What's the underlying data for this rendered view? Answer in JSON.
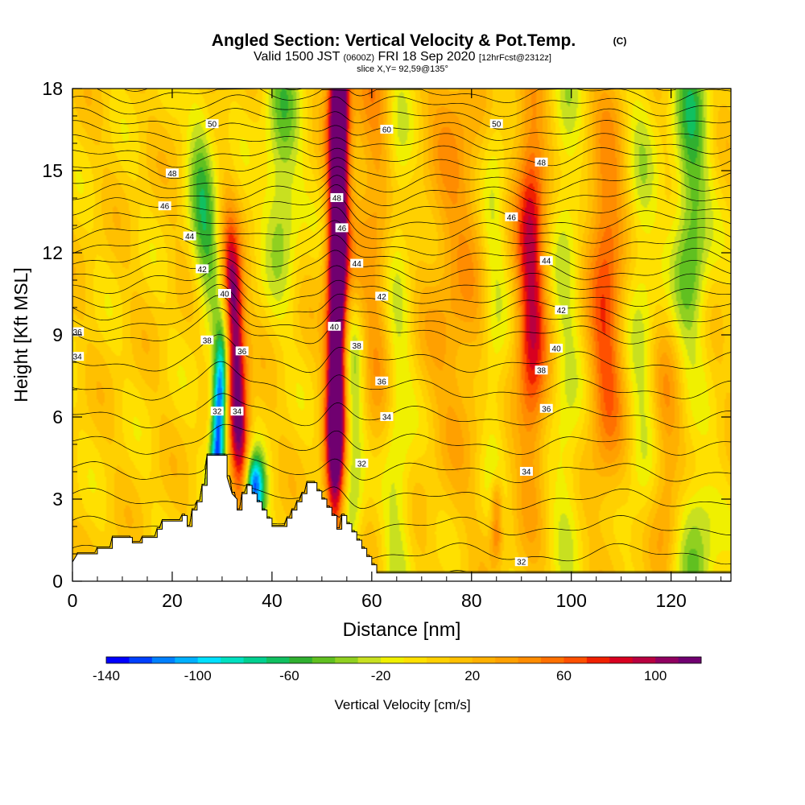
{
  "title": {
    "main": "Angled Section: Vertical Velocity & Pot.Temp.",
    "main_suffix": "(C)",
    "valid_prefix": "Valid 1500 JST",
    "valid_utc": "(0600Z)",
    "valid_date": "FRI 18 Sep 2020",
    "valid_fcst": "[12hrFcst@2312z]",
    "slice": "slice X,Y= 92,59@135°"
  },
  "chart_data": {
    "type": "heatmap",
    "xlabel": "Distance [nm]",
    "ylabel": "Height [Kft MSL]",
    "xlim": [
      0,
      132
    ],
    "ylim": [
      0,
      18
    ],
    "x_ticks": [
      0,
      20,
      40,
      60,
      80,
      100,
      120
    ],
    "y_ticks": [
      0,
      3,
      6,
      9,
      12,
      15,
      18
    ],
    "colorbar": {
      "label": "Vertical Velocity [cm/s]",
      "range": [
        -140,
        120
      ],
      "tick_values": [
        -140,
        -100,
        -60,
        -20,
        20,
        60,
        100
      ],
      "tick_labels": [
        "-140",
        "-100",
        "-60",
        "-20",
        "20",
        "60",
        "100"
      ],
      "colors": [
        "#0000ff",
        "#0040ff",
        "#0080ff",
        "#00b0ff",
        "#00e0ff",
        "#00e0c0",
        "#00d090",
        "#10c060",
        "#30b030",
        "#60c020",
        "#90d020",
        "#c8e020",
        "#f0f000",
        "#ffe000",
        "#ffd000",
        "#ffc000",
        "#ffb000",
        "#ffa000",
        "#ff8c00",
        "#ff7000",
        "#ff5000",
        "#f02000",
        "#d80020",
        "#b80040",
        "#900060",
        "#700070"
      ]
    },
    "contour_field": "Potential temperature (C)",
    "contour_labels": [
      {
        "x": 1,
        "y": 9.1,
        "text": "36"
      },
      {
        "x": 1,
        "y": 8.2,
        "text": "34"
      },
      {
        "x": 28,
        "y": 16.7,
        "text": "50"
      },
      {
        "x": 20,
        "y": 14.9,
        "text": "48"
      },
      {
        "x": 18.5,
        "y": 13.7,
        "text": "46"
      },
      {
        "x": 23.5,
        "y": 12.6,
        "text": "44"
      },
      {
        "x": 26,
        "y": 11.4,
        "text": "42"
      },
      {
        "x": 30.5,
        "y": 10.5,
        "text": "40"
      },
      {
        "x": 27,
        "y": 8.8,
        "text": "38"
      },
      {
        "x": 34,
        "y": 8.4,
        "text": "36"
      },
      {
        "x": 29,
        "y": 6.2,
        "text": "32"
      },
      {
        "x": 33,
        "y": 6.2,
        "text": "34"
      },
      {
        "x": 63,
        "y": 16.5,
        "text": "60"
      },
      {
        "x": 85,
        "y": 16.7,
        "text": "50"
      },
      {
        "x": 53,
        "y": 14,
        "text": "48"
      },
      {
        "x": 54,
        "y": 12.9,
        "text": "46"
      },
      {
        "x": 57,
        "y": 11.6,
        "text": "44"
      },
      {
        "x": 62,
        "y": 10.4,
        "text": "42"
      },
      {
        "x": 52.5,
        "y": 9.3,
        "text": "40"
      },
      {
        "x": 57,
        "y": 8.6,
        "text": "38"
      },
      {
        "x": 62,
        "y": 7.3,
        "text": "36"
      },
      {
        "x": 63,
        "y": 6,
        "text": "34"
      },
      {
        "x": 58,
        "y": 4.3,
        "text": "32"
      },
      {
        "x": 94,
        "y": 15.3,
        "text": "48"
      },
      {
        "x": 88,
        "y": 13.3,
        "text": "46"
      },
      {
        "x": 95,
        "y": 11.7,
        "text": "44"
      },
      {
        "x": 98,
        "y": 9.9,
        "text": "42"
      },
      {
        "x": 97,
        "y": 8.5,
        "text": "40"
      },
      {
        "x": 94,
        "y": 7.7,
        "text": "38"
      },
      {
        "x": 95,
        "y": 6.3,
        "text": "36"
      },
      {
        "x": 91,
        "y": 4,
        "text": "34"
      },
      {
        "x": 90,
        "y": 0.7,
        "text": "32"
      }
    ],
    "terrain_profile": [
      [
        0,
        0.7
      ],
      [
        1,
        1
      ],
      [
        5,
        1
      ],
      [
        5,
        1.2
      ],
      [
        8,
        1.2
      ],
      [
        8,
        1.6
      ],
      [
        12,
        1.6
      ],
      [
        12,
        1.4
      ],
      [
        14,
        1.4
      ],
      [
        14,
        1.6
      ],
      [
        17,
        1.6
      ],
      [
        17,
        1.9
      ],
      [
        18,
        1.9
      ],
      [
        18,
        2.2
      ],
      [
        19,
        2.2
      ],
      [
        19,
        2.2
      ],
      [
        22,
        2.2
      ],
      [
        22,
        2.4
      ],
      [
        23,
        2.4
      ],
      [
        23,
        2.0
      ],
      [
        24,
        2.0
      ],
      [
        24,
        2.6
      ],
      [
        25,
        2.6
      ],
      [
        25,
        2.9
      ],
      [
        26,
        2.9
      ],
      [
        26,
        3.5
      ],
      [
        27,
        3.5
      ],
      [
        27,
        4.6
      ],
      [
        29,
        4.6
      ],
      [
        31,
        4.6
      ],
      [
        31,
        3.8
      ],
      [
        32,
        3.2
      ],
      [
        33,
        3.0
      ],
      [
        33,
        2.6
      ],
      [
        34,
        2.6
      ],
      [
        34,
        3.2
      ],
      [
        35,
        3.2
      ],
      [
        35,
        3.5
      ],
      [
        36,
        3.5
      ],
      [
        36,
        3.2
      ],
      [
        37,
        3.2
      ],
      [
        37,
        2.9
      ],
      [
        38,
        2.9
      ],
      [
        38,
        2.6
      ],
      [
        39,
        2.6
      ],
      [
        39,
        2.3
      ],
      [
        40,
        2.3
      ],
      [
        40,
        2.0
      ],
      [
        43,
        2.0
      ],
      [
        43,
        2.3
      ],
      [
        44,
        2.3
      ],
      [
        44,
        2.6
      ],
      [
        45,
        2.6
      ],
      [
        45,
        2.9
      ],
      [
        46,
        2.9
      ],
      [
        46,
        3.2
      ],
      [
        47,
        3.2
      ],
      [
        47,
        3.6
      ],
      [
        49,
        3.6
      ],
      [
        49,
        3.3
      ],
      [
        50,
        3.3
      ],
      [
        50,
        3.0
      ],
      [
        51,
        3.0
      ],
      [
        51,
        2.7
      ],
      [
        52,
        2.7
      ],
      [
        52,
        2.4
      ],
      [
        53,
        2.4
      ],
      [
        53,
        1.9
      ],
      [
        54,
        1.9
      ],
      [
        54,
        2.4
      ],
      [
        55,
        2.4
      ],
      [
        55,
        2.1
      ],
      [
        56,
        2.1
      ],
      [
        56,
        1.8
      ],
      [
        57,
        1.8
      ],
      [
        57,
        1.5
      ],
      [
        58,
        1.5
      ],
      [
        58,
        1.2
      ],
      [
        59,
        1.2
      ],
      [
        59,
        0.9
      ],
      [
        60,
        0.9
      ],
      [
        60,
        0.6
      ],
      [
        61,
        0.6
      ],
      [
        61,
        0.3
      ],
      [
        132,
        0.3
      ]
    ]
  }
}
